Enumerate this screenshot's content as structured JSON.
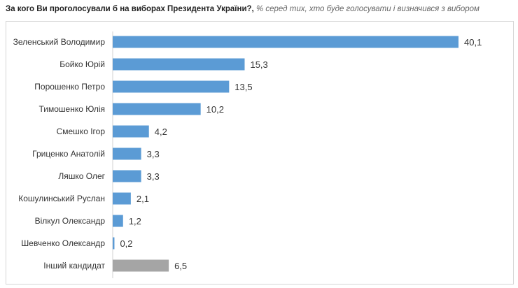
{
  "title": {
    "question": "За кого Ви проголосували б на виборах Президента України?,",
    "note": "% серед тих, хто буде голосувати і визначився з вибором"
  },
  "chart_data": {
    "type": "bar",
    "orientation": "horizontal",
    "categories": [
      "Зеленський Володимир",
      "Бойко Юрій",
      "Порошенко Петро",
      "Тимошенко Юлія",
      "Смешко Ігор",
      "Гриценко Анатолій",
      "Ляшко Олег",
      "Кошулинський Руслан",
      "Вілкул Олександр",
      "Шевченко Олександр",
      "Інший кандидат"
    ],
    "values": [
      40.1,
      15.3,
      13.5,
      10.2,
      4.2,
      3.3,
      3.3,
      2.1,
      1.2,
      0.2,
      6.5
    ],
    "value_labels": [
      "40,1",
      "15,3",
      "13,5",
      "10,2",
      "4,2",
      "3,3",
      "3,3",
      "2,1",
      "1,2",
      "0,2",
      "6,5"
    ],
    "colors": {
      "default": "#5b9bd5",
      "other": "#a5a5a5"
    },
    "xlim": [
      0,
      45
    ],
    "grid": false,
    "legend": "none"
  }
}
